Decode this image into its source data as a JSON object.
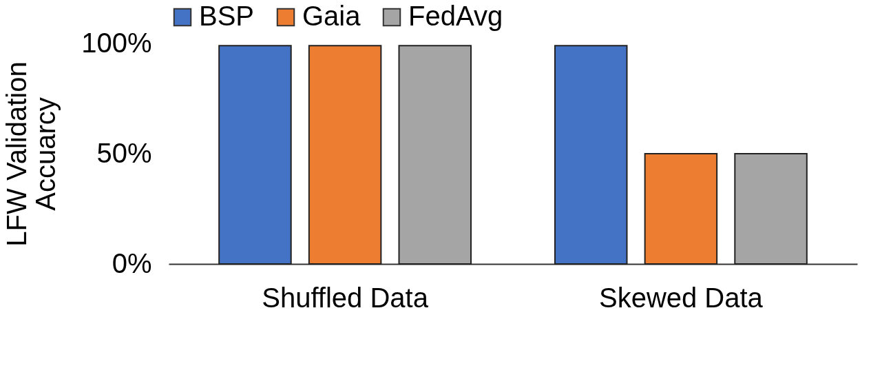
{
  "chart_data": {
    "type": "bar",
    "ylabel": "LFW Validation Accuarcy",
    "categories": [
      "Shuffled Data",
      "Skewed Data"
    ],
    "series": [
      {
        "name": "BSP",
        "color": "#4472c4",
        "values": [
          99,
          99
        ]
      },
      {
        "name": "Gaia",
        "color": "#ed7d31",
        "values": [
          99,
          50
        ]
      },
      {
        "name": "FedAvg",
        "color": "#a5a5a5",
        "values": [
          99,
          50
        ]
      }
    ],
    "ylim": [
      0,
      100
    ],
    "yticks": [
      {
        "value": 0,
        "label": "0%"
      },
      {
        "value": 50,
        "label": "50%"
      },
      {
        "value": 100,
        "label": "100%"
      }
    ],
    "grid": false,
    "legend": "top"
  }
}
